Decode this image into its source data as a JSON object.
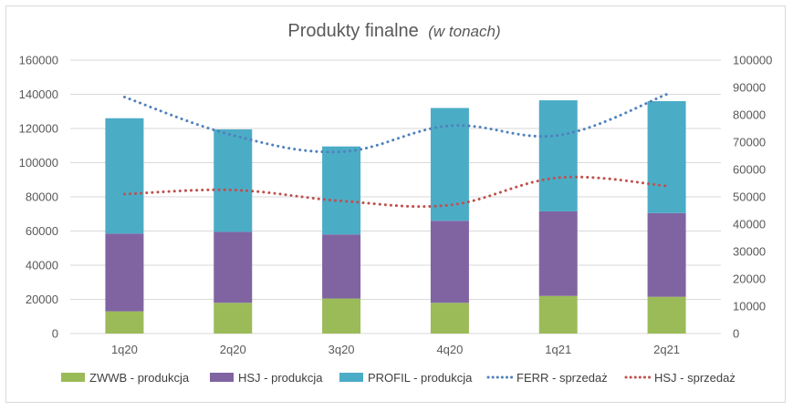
{
  "chart_data": {
    "type": "bar",
    "title": "Produkty finalne",
    "title_unit": "(w tonach)",
    "categories": [
      "1q20",
      "2q20",
      "3q20",
      "4q20",
      "1q21",
      "2q21"
    ],
    "y_left": {
      "min": 0,
      "max": 160000,
      "step": 20000,
      "ticks": [
        "0",
        "20000",
        "40000",
        "60000",
        "80000",
        "100000",
        "120000",
        "140000",
        "160000"
      ]
    },
    "y_right": {
      "min": 0,
      "max": 100000,
      "step": 10000,
      "ticks": [
        "0",
        "10000",
        "20000",
        "30000",
        "40000",
        "50000",
        "60000",
        "70000",
        "80000",
        "90000",
        "100000"
      ]
    },
    "grid": true,
    "legend_position": "bottom",
    "stacked_series": [
      {
        "name": "ZWWB - produkcja",
        "color": "#9bbb59",
        "axis": "left",
        "values": [
          13000,
          18000,
          20500,
          18000,
          22000,
          21500
        ]
      },
      {
        "name": "HSJ - produkcja",
        "color": "#8064a2",
        "axis": "left",
        "values": [
          45500,
          41500,
          37500,
          48000,
          49500,
          49000
        ]
      },
      {
        "name": "PROFIL - produkcja",
        "color": "#4bacc6",
        "axis": "left",
        "values": [
          67500,
          60000,
          51500,
          66000,
          65000,
          65500
        ]
      }
    ],
    "line_series": [
      {
        "name": "FERR  - sprzedaż",
        "color": "#4f81bd",
        "axis": "right",
        "values": [
          86500,
          72500,
          66500,
          76000,
          72500,
          87500
        ]
      },
      {
        "name": "HSJ - sprzedaż",
        "color": "#c0504d",
        "axis": "right",
        "values": [
          51000,
          52500,
          48500,
          47000,
          57000,
          54000
        ]
      }
    ]
  }
}
